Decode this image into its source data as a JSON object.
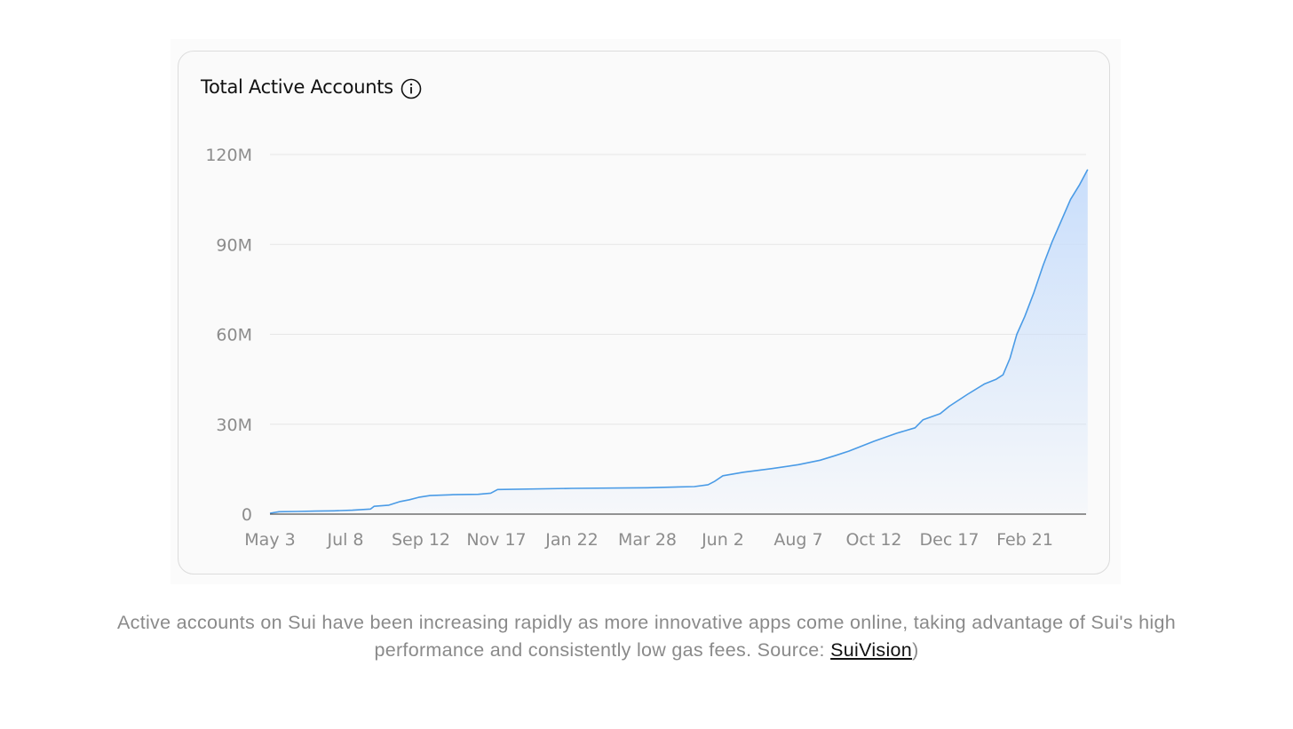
{
  "card": {
    "title": "Total Active Accounts",
    "info_icon": "info-circle-icon"
  },
  "caption": {
    "text_before": "Active accounts on Sui have been increasing rapidly as more innovative apps come online, taking advantage of Sui's high performance and consistently low gas fees. Source: ",
    "link_text": "SuiVision",
    "text_after": ")"
  },
  "colors": {
    "line": "#4a9be6",
    "area_top": "#c9defb",
    "grid": "#e6e6e6",
    "axis_text": "#8c8c8c",
    "baseline": "#555555"
  },
  "chart_data": {
    "type": "area",
    "title": "Total Active Accounts",
    "xlabel": "",
    "ylabel": "",
    "ylim": [
      0,
      120
    ],
    "y_unit": "M",
    "yticks": [
      0,
      30,
      60,
      90,
      120
    ],
    "ytick_labels": [
      "0",
      "30M",
      "60M",
      "90M",
      "120M"
    ],
    "xtick_labels": [
      "May 3",
      "Jul 8",
      "Sep 12",
      "Nov 17",
      "Jan 22",
      "Mar 28",
      "Jun 2",
      "Aug 7",
      "Oct 12",
      "Dec 17",
      "Feb 21"
    ],
    "grid": true,
    "x_start": "2023-05-03",
    "series": [
      {
        "x": [
          "2023-05-03",
          "2023-05-11",
          "2023-05-27",
          "2023-06-12",
          "2023-06-28",
          "2023-07-14",
          "2023-07-30",
          "2023-08-02",
          "2023-08-15",
          "2023-08-25",
          "2023-09-02",
          "2023-09-10",
          "2023-09-20",
          "2023-10-10",
          "2023-11-01",
          "2023-11-12",
          "2023-11-18",
          "2024-01-22",
          "2024-03-28",
          "2024-05-08",
          "2024-05-20",
          "2024-05-26",
          "2024-06-02",
          "2024-06-20",
          "2024-07-15",
          "2024-08-07",
          "2024-08-26",
          "2024-09-08",
          "2024-09-20",
          "2024-10-12",
          "2024-11-01",
          "2024-11-17",
          "2024-11-24",
          "2024-12-09",
          "2024-12-17",
          "2025-01-02",
          "2025-01-17",
          "2025-01-27",
          "2025-02-02",
          "2025-02-08",
          "2025-02-14",
          "2025-02-21",
          "2025-03-01",
          "2025-03-09",
          "2025-03-17",
          "2025-03-25",
          "2025-04-02",
          "2025-04-10",
          "2025-04-17"
        ],
        "values": [
          0.3,
          0.8,
          0.9,
          1.0,
          1.1,
          1.3,
          1.7,
          2.6,
          3.0,
          4.2,
          4.8,
          5.6,
          6.2,
          6.5,
          6.6,
          7.0,
          8.2,
          8.6,
          8.8,
          9.2,
          9.8,
          11.0,
          12.8,
          14.0,
          15.2,
          16.5,
          18.0,
          19.5,
          21.0,
          24.3,
          27.0,
          28.8,
          31.5,
          33.5,
          36.0,
          40.0,
          43.5,
          45.0,
          46.5,
          52.0,
          60.0,
          66.0,
          74.0,
          83.0,
          91.0,
          98.0,
          105.0,
          110.0,
          115.0
        ]
      }
    ]
  }
}
